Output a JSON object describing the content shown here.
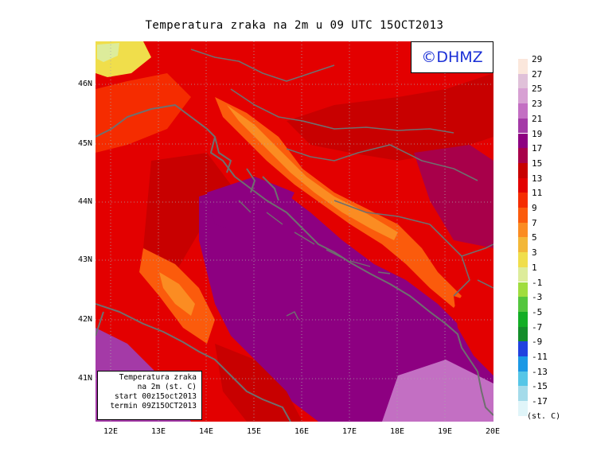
{
  "title": "Temperatura zraka na 2m u 09 UTC 15OCT2013",
  "logo": "©DHMZ",
  "info": {
    "line1": "Temperatura zraka",
    "line2": "na 2m (st. C)",
    "line3": "start 00z15oct2013",
    "line4": "termin 09Z15OCT2013"
  },
  "axes": {
    "lat_labels": [
      "46N",
      "45N",
      "44N",
      "43N",
      "42N",
      "41N"
    ],
    "lon_labels": [
      "12E",
      "13E",
      "14E",
      "15E",
      "16E",
      "17E",
      "18E",
      "19E",
      "20E"
    ]
  },
  "legend": {
    "units": "(st. C)",
    "labels": [
      "29",
      "27",
      "25",
      "23",
      "21",
      "19",
      "17",
      "15",
      "13",
      "11",
      "9",
      "7",
      "5",
      "3",
      "1",
      "-1",
      "-3",
      "-5",
      "-7",
      "-9",
      "-11",
      "-13",
      "-15",
      "-17"
    ],
    "colors": [
      "#fbe7dc",
      "#e0c1d9",
      "#d7a0d3",
      "#c36fc3",
      "#a43aa7",
      "#8d0081",
      "#a8004a",
      "#c80000",
      "#e30000",
      "#f52c00",
      "#fb5b0c",
      "#fb8c22",
      "#f3b738",
      "#f0de4b",
      "#ddec9b",
      "#a0dd3f",
      "#54c63e",
      "#13ae25",
      "#148d2b",
      "#2142df",
      "#1b98e5",
      "#56c6e7",
      "#a4dbea",
      "#e0f5f9"
    ]
  },
  "colors": {
    "coast": "#6f6f6f",
    "grid": "#aaaaaa",
    "sea": "#8d0081",
    "sea_south": "#a43aa7",
    "logo_text": "#1a2fd6"
  }
}
